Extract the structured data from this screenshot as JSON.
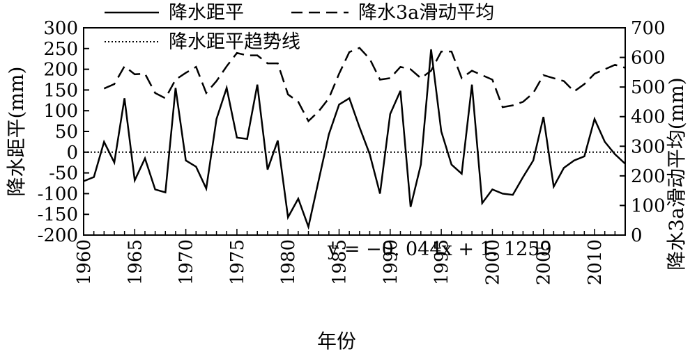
{
  "chart_data": {
    "type": "line",
    "xlabel": "年份",
    "ylabel_left": "降水距平(mm)",
    "ylabel_right": "降水3a滑动平均(mm)",
    "xlim": [
      1960,
      2013
    ],
    "ylim_left": [
      -200,
      300
    ],
    "ylim_right": [
      0,
      700
    ],
    "x_ticks": [
      "1960",
      "1965",
      "1970",
      "1975",
      "1980",
      "1985",
      "1990",
      "1995",
      "2000",
      "2005",
      "2010"
    ],
    "y_left_ticks": [
      "300",
      "250",
      "200",
      "150",
      "100",
      "50",
      "0",
      "-50",
      "-100",
      "-150",
      "-200"
    ],
    "y_right_ticks": [
      "700",
      "600",
      "500",
      "400",
      "300",
      "200",
      "100",
      "0"
    ],
    "legend": {
      "placement": "top",
      "items": [
        {
          "label": "降水距平",
          "style": "solid"
        },
        {
          "label": "降水3a滑动平均",
          "style": "dashed"
        },
        {
          "label": "降水距平趋势线",
          "style": "dotted"
        }
      ]
    },
    "annotation": {
      "text": "y = −0. 044x + 1. 1259"
    },
    "series": [
      {
        "name": "降水距平",
        "axis": "left",
        "style": "solid",
        "x": [
          1960,
          1961,
          1962,
          1963,
          1964,
          1965,
          1966,
          1967,
          1968,
          1969,
          1970,
          1971,
          1972,
          1973,
          1974,
          1975,
          1976,
          1977,
          1978,
          1979,
          1980,
          1981,
          1982,
          1983,
          1984,
          1985,
          1986,
          1987,
          1988,
          1989,
          1990,
          1991,
          1992,
          1993,
          1994,
          1995,
          1996,
          1997,
          1998,
          1999,
          2000,
          2001,
          2002,
          2003,
          2004,
          2005,
          2006,
          2007,
          2008,
          2009,
          2010,
          2011,
          2012,
          2013
        ],
        "values": [
          -70,
          -60,
          25,
          -25,
          130,
          -68,
          -15,
          -90,
          -97,
          155,
          -20,
          -35,
          -88,
          80,
          155,
          35,
          32,
          163,
          -42,
          28,
          -157,
          -112,
          -180,
          -68,
          43,
          115,
          130,
          60,
          -5,
          -100,
          92,
          148,
          -132,
          -30,
          248,
          50,
          -30,
          -52,
          163,
          -123,
          -90,
          -100,
          -103,
          -60,
          -20,
          85,
          -83,
          -38,
          -20,
          -10,
          80,
          25,
          -5,
          -28
        ]
      },
      {
        "name": "降水3a滑动平均",
        "axis": "right",
        "style": "dashed",
        "x": [
          1962,
          1963,
          1964,
          1965,
          1966,
          1967,
          1968,
          1969,
          1970,
          1971,
          1972,
          1973,
          1974,
          1975,
          1976,
          1977,
          1978,
          1979,
          1980,
          1981,
          1982,
          1983,
          1984,
          1985,
          1986,
          1987,
          1988,
          1989,
          1990,
          1991,
          1992,
          1993,
          1994,
          1995,
          1996,
          1997,
          1998,
          1999,
          2000,
          2001,
          2002,
          2003,
          2004,
          2005,
          2006,
          2007,
          2008,
          2009,
          2010,
          2011,
          2012,
          2013
        ],
        "values": [
          495,
          510,
          570,
          543,
          545,
          480,
          462,
          525,
          548,
          568,
          480,
          520,
          570,
          615,
          607,
          607,
          580,
          580,
          475,
          450,
          385,
          418,
          462,
          545,
          618,
          632,
          595,
          525,
          530,
          568,
          560,
          530,
          555,
          620,
          620,
          530,
          555,
          540,
          525,
          432,
          438,
          450,
          480,
          540,
          530,
          520,
          485,
          510,
          545,
          560,
          575,
          565
        ]
      },
      {
        "name": "降水距平趋势线",
        "axis": "left",
        "style": "dotted",
        "x": [
          1960,
          2013
        ],
        "values": [
          0,
          0
        ]
      }
    ]
  }
}
